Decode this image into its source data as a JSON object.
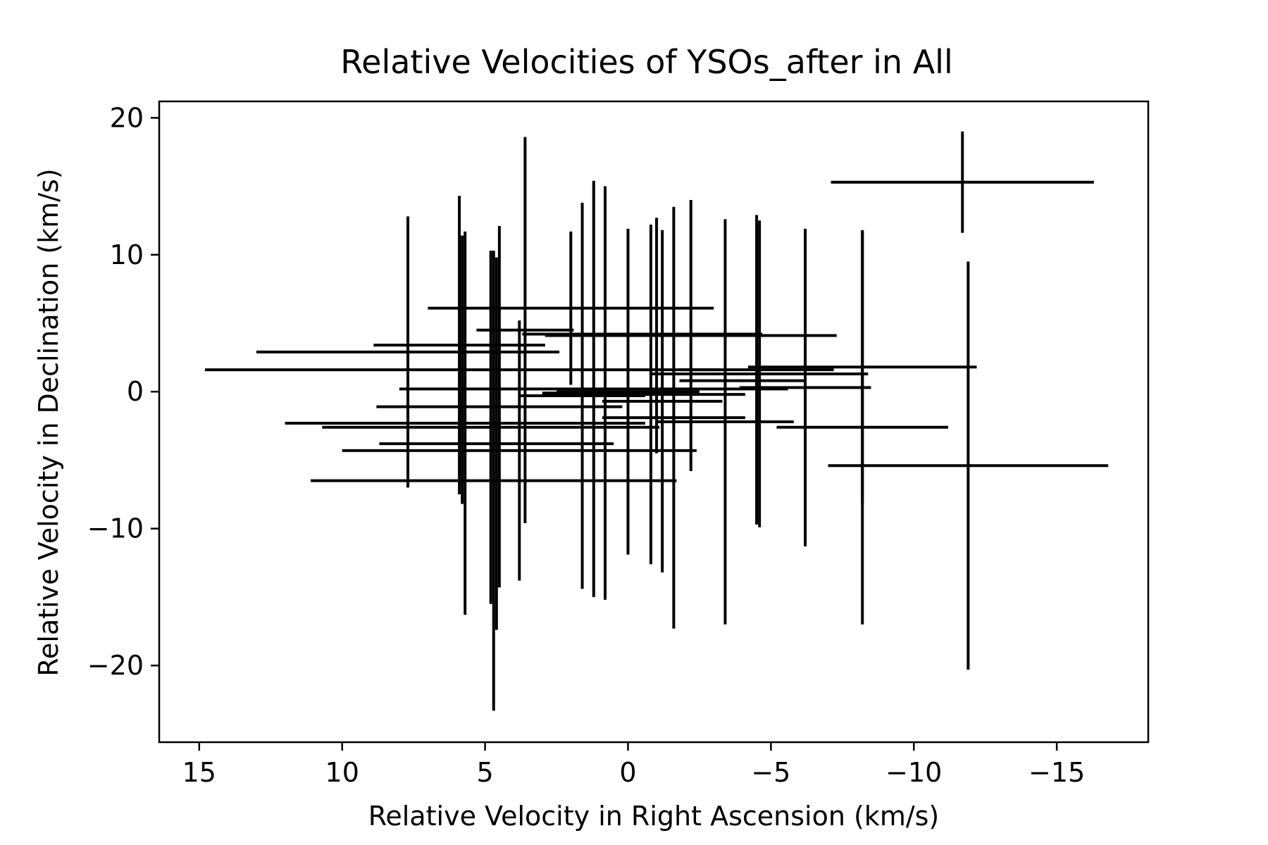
{
  "chart_data": {
    "type": "scatter",
    "title": "Relative Velocities of YSOs_after in All",
    "xlabel": "Relative Velocity in Right Ascension (km/s)",
    "ylabel": "Relative Velocity in Declination (km/s)",
    "xlim": [
      16.4,
      -18.2
    ],
    "ylim": [
      -25.6,
      21.2
    ],
    "x_inverted": true,
    "xticks": [
      15,
      10,
      5,
      0,
      -5,
      -10,
      -15
    ],
    "xtick_labels": [
      "15",
      "10",
      "5",
      "0",
      "−5",
      "−10",
      "−15"
    ],
    "yticks": [
      20,
      10,
      0,
      -10,
      -20
    ],
    "ytick_labels": [
      "20",
      "10",
      "0",
      "−10",
      "−20"
    ],
    "grid": false,
    "marker": "errorbar",
    "color": "#000000",
    "points": [
      {
        "x": -11.7,
        "y": 15.3,
        "xerr": 4.6,
        "yerr": 3.7
      },
      {
        "x": -11.9,
        "y": -5.4,
        "xerr": 4.9,
        "yerr": 14.9
      },
      {
        "x": -8.2,
        "y": 1.8,
        "xerr": 4.0,
        "yerr": 9.9
      },
      {
        "x": -8.2,
        "y": -2.6,
        "xerr": 3.0,
        "yerr": 14.4
      },
      {
        "x": 7.7,
        "y": 2.9,
        "xerr": 5.3,
        "yerr": 9.9
      },
      {
        "x": 5.8,
        "y": 1.6,
        "xerr": 9.0,
        "yerr": 9.8
      },
      {
        "x": 5.9,
        "y": 3.4,
        "xerr": 3.0,
        "yerr": 10.9
      },
      {
        "x": 5.7,
        "y": -2.3,
        "xerr": 6.3,
        "yerr": 14.0
      },
      {
        "x": 4.8,
        "y": -2.6,
        "xerr": 5.9,
        "yerr": 12.9
      },
      {
        "x": 4.7,
        "y": -6.5,
        "xerr": 6.4,
        "yerr": 16.8
      },
      {
        "x": 4.6,
        "y": -3.8,
        "xerr": 4.1,
        "yerr": 13.6
      },
      {
        "x": 4.5,
        "y": -1.1,
        "xerr": 4.3,
        "yerr": 13.2
      },
      {
        "x": 3.8,
        "y": -4.3,
        "xerr": 6.2,
        "yerr": 9.5
      },
      {
        "x": 3.6,
        "y": 4.5,
        "xerr": 1.7,
        "yerr": 14.1
      },
      {
        "x": 2.0,
        "y": 6.1,
        "xerr": 5.0,
        "yerr": 5.6
      },
      {
        "x": 1.6,
        "y": -0.3,
        "xerr": 2.2,
        "yerr": 14.1
      },
      {
        "x": 1.2,
        "y": 0.2,
        "xerr": 6.8,
        "yerr": 15.2
      },
      {
        "x": 0.8,
        "y": -0.1,
        "xerr": 2.2,
        "yerr": 15.1
      },
      {
        "x": 0.0,
        "y": 0.0,
        "xerr": 2.5,
        "yerr": 11.9
      },
      {
        "x": -0.8,
        "y": -0.2,
        "xerr": 3.3,
        "yerr": 12.4
      },
      {
        "x": -1.0,
        "y": 4.1,
        "xerr": 3.0,
        "yerr": 8.6
      },
      {
        "x": -1.2,
        "y": -0.7,
        "xerr": 2.1,
        "yerr": 12.5
      },
      {
        "x": -1.6,
        "y": -1.9,
        "xerr": 2.5,
        "yerr": 15.4
      },
      {
        "x": -2.2,
        "y": 4.1,
        "xerr": 5.1,
        "yerr": 9.9
      },
      {
        "x": -3.4,
        "y": -2.2,
        "xerr": 2.4,
        "yerr": 14.8
      },
      {
        "x": -4.5,
        "y": 1.6,
        "xerr": 2.7,
        "yerr": 11.3
      },
      {
        "x": -4.6,
        "y": 1.3,
        "xerr": 3.8,
        "yerr": 11.2
      },
      {
        "x": -6.2,
        "y": 0.3,
        "xerr": 2.3,
        "yerr": 11.6
      },
      {
        "x": -4.0,
        "y": 0.8,
        "xerr": 2.2,
        "yerr": 0.1
      },
      {
        "x": -0.5,
        "y": 4.2,
        "xerr": 4.2,
        "yerr": 0.1
      }
    ]
  }
}
